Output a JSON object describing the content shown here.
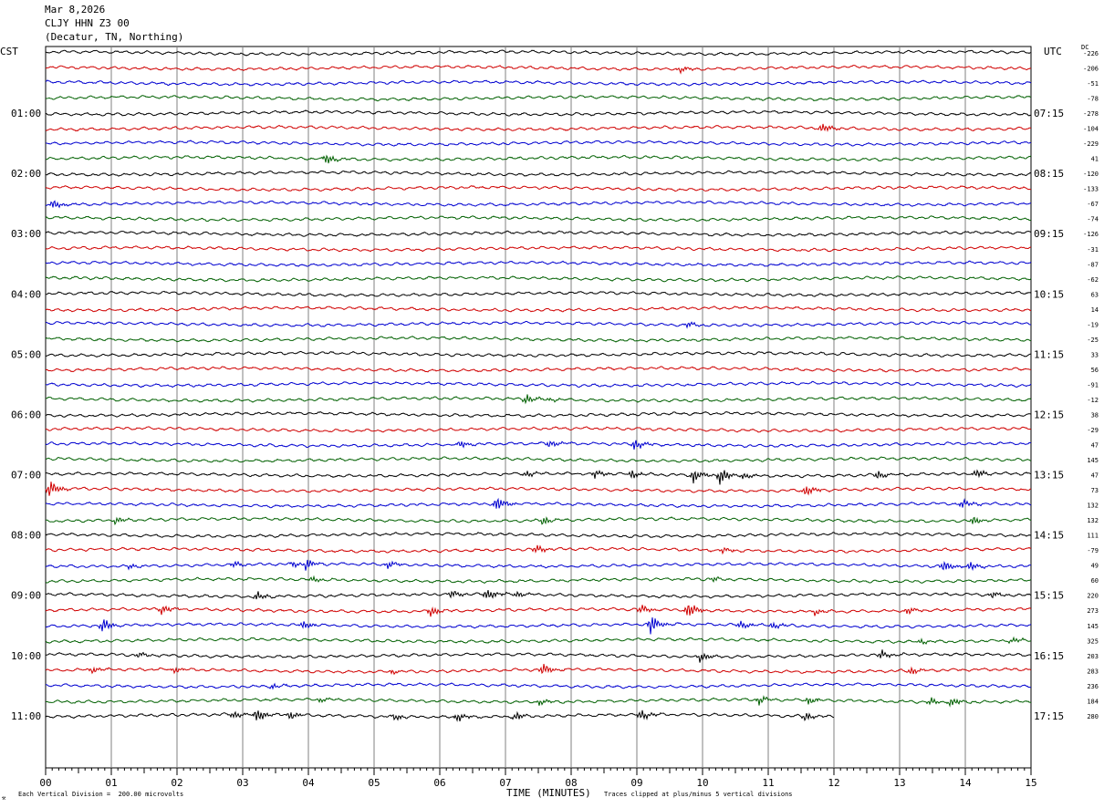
{
  "header": {
    "date": "Mar 8,2026",
    "station": "CLJY HHN Z3 00",
    "location": "(Decatur, TN, Northing)"
  },
  "labels": {
    "left_zone": "CST",
    "right_zone": "UTC",
    "dc": "DC",
    "xlabel": "TIME (MINUTES)",
    "vertical_division": "Each Vertical Division =  200.00 microvolts",
    "clip_note": "Traces clipped at plus/minus 5 vertical divisions",
    "logo": "⚒"
  },
  "colors": {
    "black": "#000000",
    "red": "#d00000",
    "blue": "#0000d0",
    "green": "#006000",
    "grid": "#808080"
  },
  "chart_data": {
    "type": "line",
    "title": "Mar 8,2026",
    "xlabel": "TIME (MINUTES)",
    "xlim": [
      0,
      15
    ],
    "x_ticks": [
      "00",
      "01",
      "02",
      "03",
      "04",
      "05",
      "06",
      "07",
      "08",
      "09",
      "10",
      "11",
      "12",
      "13",
      "14",
      "15"
    ],
    "rows_per_hour": 4,
    "minutes_per_row": 15,
    "last_row_end_minute": 12,
    "color_cycle": [
      "black",
      "red",
      "blue",
      "green"
    ],
    "left_time_labels": [
      "01:00",
      "02:00",
      "03:00",
      "04:00",
      "05:00",
      "06:00",
      "07:00",
      "08:00",
      "09:00",
      "10:00",
      "11:00"
    ],
    "right_time_labels": [
      "07:15",
      "08:15",
      "09:15",
      "10:15",
      "11:15",
      "12:15",
      "13:15",
      "14:15",
      "15:15",
      "16:15",
      "17:15"
    ],
    "dc_offsets": [
      "-226",
      "-206",
      "-51",
      "-78",
      "-278",
      "-104",
      "-229",
      "41",
      "-120",
      "-133",
      "-67",
      "-74",
      "-126",
      "-31",
      "-87",
      "-62",
      "63",
      "14",
      "-19",
      "-25",
      "33",
      "56",
      "-91",
      "-12",
      "38",
      "-29",
      "47",
      "145",
      "47",
      "73",
      "132",
      "132",
      "111",
      "-79",
      "49",
      "60",
      "220",
      "273",
      "145",
      "325",
      "203",
      "283",
      "236",
      "184",
      "280"
    ],
    "events": [
      {
        "row": 1,
        "minute": 9.65,
        "amp": 4
      },
      {
        "row": 5,
        "minute": 11.8,
        "amp": 6
      },
      {
        "row": 7,
        "minute": 4.25,
        "amp": 7
      },
      {
        "row": 10,
        "minute": 0.1,
        "amp": 6
      },
      {
        "row": 18,
        "minute": 9.75,
        "amp": 4
      },
      {
        "row": 23,
        "minute": 7.3,
        "amp": 6
      },
      {
        "row": 23,
        "minute": 7.65,
        "amp": 3
      },
      {
        "row": 26,
        "minute": 6.3,
        "amp": 5
      },
      {
        "row": 26,
        "minute": 7.65,
        "amp": 5
      },
      {
        "row": 26,
        "minute": 8.95,
        "amp": 7
      },
      {
        "row": 28,
        "minute": 7.3,
        "amp": 4
      },
      {
        "row": 28,
        "minute": 8.35,
        "amp": 5
      },
      {
        "row": 28,
        "minute": 8.9,
        "amp": 5
      },
      {
        "row": 28,
        "minute": 9.85,
        "amp": 9
      },
      {
        "row": 28,
        "minute": 10.25,
        "amp": 11
      },
      {
        "row": 28,
        "minute": 10.6,
        "amp": 4
      },
      {
        "row": 28,
        "minute": 12.65,
        "amp": 5
      },
      {
        "row": 28,
        "minute": 14.15,
        "amp": 5
      },
      {
        "row": 29,
        "minute": 0.05,
        "amp": 11
      },
      {
        "row": 29,
        "minute": 11.55,
        "amp": 7
      },
      {
        "row": 30,
        "minute": 6.85,
        "amp": 9
      },
      {
        "row": 30,
        "minute": 13.95,
        "amp": 5
      },
      {
        "row": 31,
        "minute": 1.05,
        "amp": 4
      },
      {
        "row": 31,
        "minute": 7.55,
        "amp": 5
      },
      {
        "row": 31,
        "minute": 14.1,
        "amp": 6
      },
      {
        "row": 33,
        "minute": 7.45,
        "amp": 5
      },
      {
        "row": 33,
        "minute": 10.3,
        "amp": 4
      },
      {
        "row": 34,
        "minute": 1.25,
        "amp": 3
      },
      {
        "row": 34,
        "minute": 2.85,
        "amp": 4
      },
      {
        "row": 34,
        "minute": 3.75,
        "amp": 4
      },
      {
        "row": 34,
        "minute": 3.95,
        "amp": 7
      },
      {
        "row": 34,
        "minute": 5.2,
        "amp": 5
      },
      {
        "row": 34,
        "minute": 13.65,
        "amp": 7
      },
      {
        "row": 34,
        "minute": 14.05,
        "amp": 5
      },
      {
        "row": 35,
        "minute": 4.05,
        "amp": 4
      },
      {
        "row": 35,
        "minute": 10.15,
        "amp": 3
      },
      {
        "row": 36,
        "minute": 3.2,
        "amp": 5
      },
      {
        "row": 36,
        "minute": 6.15,
        "amp": 5
      },
      {
        "row": 36,
        "minute": 6.7,
        "amp": 8
      },
      {
        "row": 36,
        "minute": 7.15,
        "amp": 4
      },
      {
        "row": 36,
        "minute": 14.4,
        "amp": 4
      },
      {
        "row": 37,
        "minute": 1.75,
        "amp": 6
      },
      {
        "row": 37,
        "minute": 5.85,
        "amp": 7
      },
      {
        "row": 37,
        "minute": 9.05,
        "amp": 5
      },
      {
        "row": 37,
        "minute": 9.75,
        "amp": 11
      },
      {
        "row": 37,
        "minute": 11.7,
        "amp": 4
      },
      {
        "row": 37,
        "minute": 13.1,
        "amp": 5
      },
      {
        "row": 38,
        "minute": 0.85,
        "amp": 8
      },
      {
        "row": 38,
        "minute": 3.9,
        "amp": 6
      },
      {
        "row": 38,
        "minute": 9.2,
        "amp": 12
      },
      {
        "row": 38,
        "minute": 10.55,
        "amp": 5
      },
      {
        "row": 38,
        "minute": 11.05,
        "amp": 4
      },
      {
        "row": 39,
        "minute": 13.3,
        "amp": 3
      },
      {
        "row": 39,
        "minute": 14.7,
        "amp": 4
      },
      {
        "row": 40,
        "minute": 1.4,
        "amp": 4
      },
      {
        "row": 40,
        "minute": 9.95,
        "amp": 6
      },
      {
        "row": 40,
        "minute": 12.7,
        "amp": 6
      },
      {
        "row": 41,
        "minute": 0.7,
        "amp": 4
      },
      {
        "row": 41,
        "minute": 1.95,
        "amp": 4
      },
      {
        "row": 41,
        "minute": 5.25,
        "amp": 3
      },
      {
        "row": 41,
        "minute": 7.55,
        "amp": 8
      },
      {
        "row": 41,
        "minute": 13.15,
        "amp": 5
      },
      {
        "row": 42,
        "minute": 3.45,
        "amp": 3
      },
      {
        "row": 43,
        "minute": 4.15,
        "amp": 3
      },
      {
        "row": 43,
        "minute": 7.5,
        "amp": 4
      },
      {
        "row": 43,
        "minute": 10.85,
        "amp": 5
      },
      {
        "row": 43,
        "minute": 11.6,
        "amp": 5
      },
      {
        "row": 43,
        "minute": 13.45,
        "amp": 5
      },
      {
        "row": 43,
        "minute": 13.75,
        "amp": 6
      },
      {
        "row": 44,
        "minute": 2.85,
        "amp": 5
      },
      {
        "row": 44,
        "minute": 3.2,
        "amp": 8
      },
      {
        "row": 44,
        "minute": 3.7,
        "amp": 5
      },
      {
        "row": 44,
        "minute": 5.3,
        "amp": 4
      },
      {
        "row": 44,
        "minute": 6.25,
        "amp": 6
      },
      {
        "row": 44,
        "minute": 7.15,
        "amp": 5
      },
      {
        "row": 44,
        "minute": 9.05,
        "amp": 6
      },
      {
        "row": 44,
        "minute": 11.55,
        "amp": 5
      }
    ]
  }
}
